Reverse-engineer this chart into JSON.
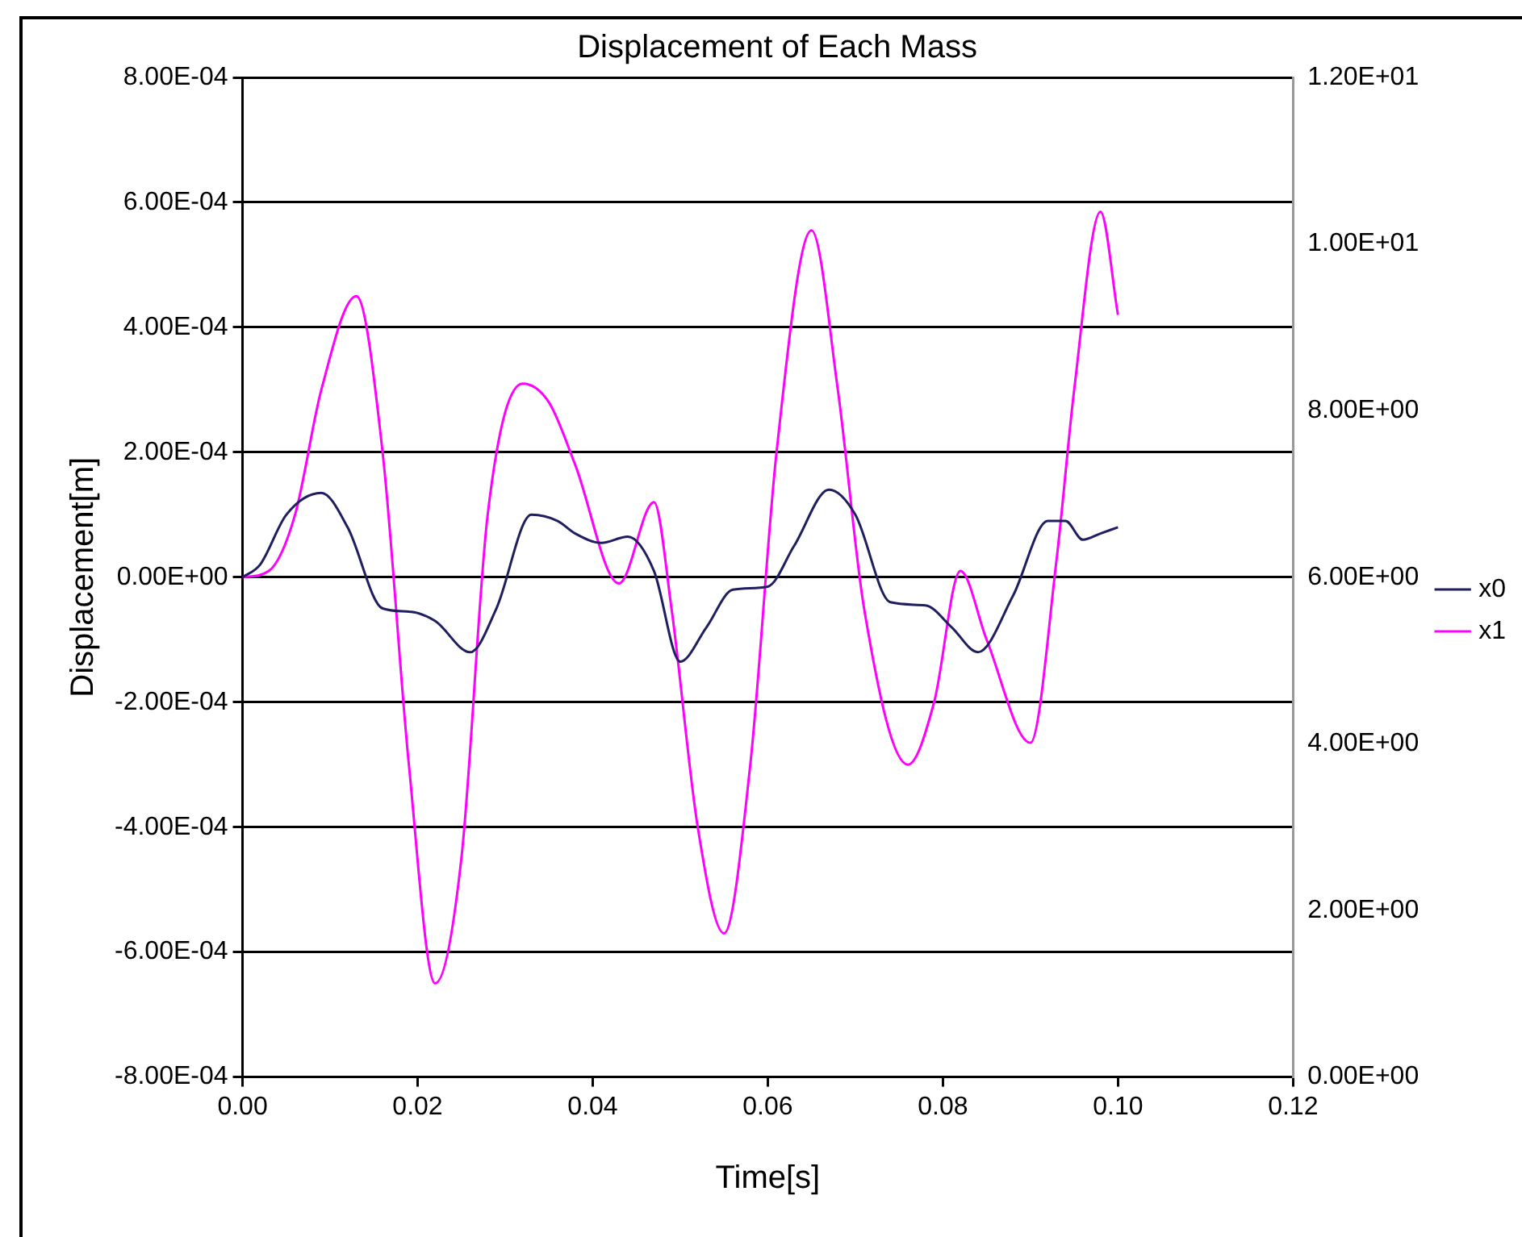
{
  "chart_data": {
    "type": "line",
    "title": "Displacement of Each Mass",
    "xlabel": "Time[s]",
    "ylabel": "Displacement[m]",
    "xlim": [
      0,
      0.12
    ],
    "xticks": [
      {
        "value": 0,
        "label": "0.00"
      },
      {
        "value": 0.02,
        "label": "0.02"
      },
      {
        "value": 0.04,
        "label": "0.04"
      },
      {
        "value": 0.06,
        "label": "0.06"
      },
      {
        "value": 0.08,
        "label": "0.08"
      },
      {
        "value": 0.1,
        "label": "0.10"
      },
      {
        "value": 0.12,
        "label": "0.12"
      }
    ],
    "ylim": [
      -0.0008,
      0.0008
    ],
    "yticks": [
      {
        "value": -0.0008,
        "label": "-8.00E-04"
      },
      {
        "value": -0.0006,
        "label": "-6.00E-04"
      },
      {
        "value": -0.0004,
        "label": "-4.00E-04"
      },
      {
        "value": -0.0002,
        "label": "-2.00E-04"
      },
      {
        "value": 0,
        "label": "0.00E+00"
      },
      {
        "value": 0.0002,
        "label": "2.00E-04"
      },
      {
        "value": 0.0004,
        "label": "4.00E-04"
      },
      {
        "value": 0.0006,
        "label": "6.00E-04"
      },
      {
        "value": 0.0008,
        "label": "8.00E-04"
      }
    ],
    "y2lim": [
      0,
      12
    ],
    "y2ticks": [
      {
        "value": 0,
        "label": "0.00E+00"
      },
      {
        "value": 2,
        "label": "2.00E+00"
      },
      {
        "value": 4,
        "label": "4.00E+00"
      },
      {
        "value": 6,
        "label": "6.00E+00"
      },
      {
        "value": 8,
        "label": "8.00E+00"
      },
      {
        "value": 10,
        "label": "1.00E+01"
      },
      {
        "value": 12,
        "label": "1.20E+01"
      }
    ],
    "grid": "y",
    "legend": "right",
    "marker": "none",
    "line_style": "solid",
    "series": [
      {
        "name": "x0",
        "color": "#1f1f5f",
        "x": [
          0,
          0.002,
          0.005,
          0.009,
          0.012,
          0.016,
          0.019,
          0.022,
          0.026,
          0.029,
          0.033,
          0.036,
          0.038,
          0.041,
          0.044,
          0.047,
          0.05,
          0.053,
          0.056,
          0.06,
          0.063,
          0.067,
          0.07,
          0.074,
          0.078,
          0.081,
          0.084,
          0.088,
          0.092,
          0.094,
          0.096,
          0.098,
          0.1
        ],
        "values": [
          0,
          2e-05,
          0.0001,
          0.000135,
          8e-05,
          -5e-05,
          -5.5e-05,
          -7e-05,
          -0.00012,
          -5e-05,
          0.0001,
          9e-05,
          7e-05,
          5.5e-05,
          6.5e-05,
          1e-05,
          -0.000135,
          -8e-05,
          -2e-05,
          -1.5e-05,
          5e-05,
          0.00014,
          0.0001,
          -4e-05,
          -4.5e-05,
          -8e-05,
          -0.00012,
          -3e-05,
          9e-05,
          9e-05,
          6e-05,
          7e-05,
          8e-05
        ]
      },
      {
        "name": "x1",
        "color": "#ff00ff",
        "x": [
          0,
          0.003,
          0.006,
          0.009,
          0.013,
          0.016,
          0.019,
          0.022,
          0.025,
          0.028,
          0.032,
          0.035,
          0.038,
          0.043,
          0.047,
          0.049,
          0.052,
          0.055,
          0.058,
          0.061,
          0.065,
          0.068,
          0.071,
          0.076,
          0.079,
          0.082,
          0.085,
          0.09,
          0.093,
          0.095,
          0.098,
          0.1
        ],
        "values": [
          0,
          1e-05,
          0.0001,
          0.0003,
          0.00045,
          0.0002,
          -0.0003,
          -0.00065,
          -0.00045,
          0.0001,
          0.00031,
          0.00028,
          0.00018,
          -1e-05,
          0.00012,
          -5e-05,
          -0.0004,
          -0.00057,
          -0.0003,
          0.0002,
          0.000555,
          0.0003,
          -5e-05,
          -0.0003,
          -0.0002,
          1e-05,
          -0.0001,
          -0.000265,
          3e-05,
          0.0003,
          0.000585,
          0.00042
        ]
      }
    ]
  }
}
